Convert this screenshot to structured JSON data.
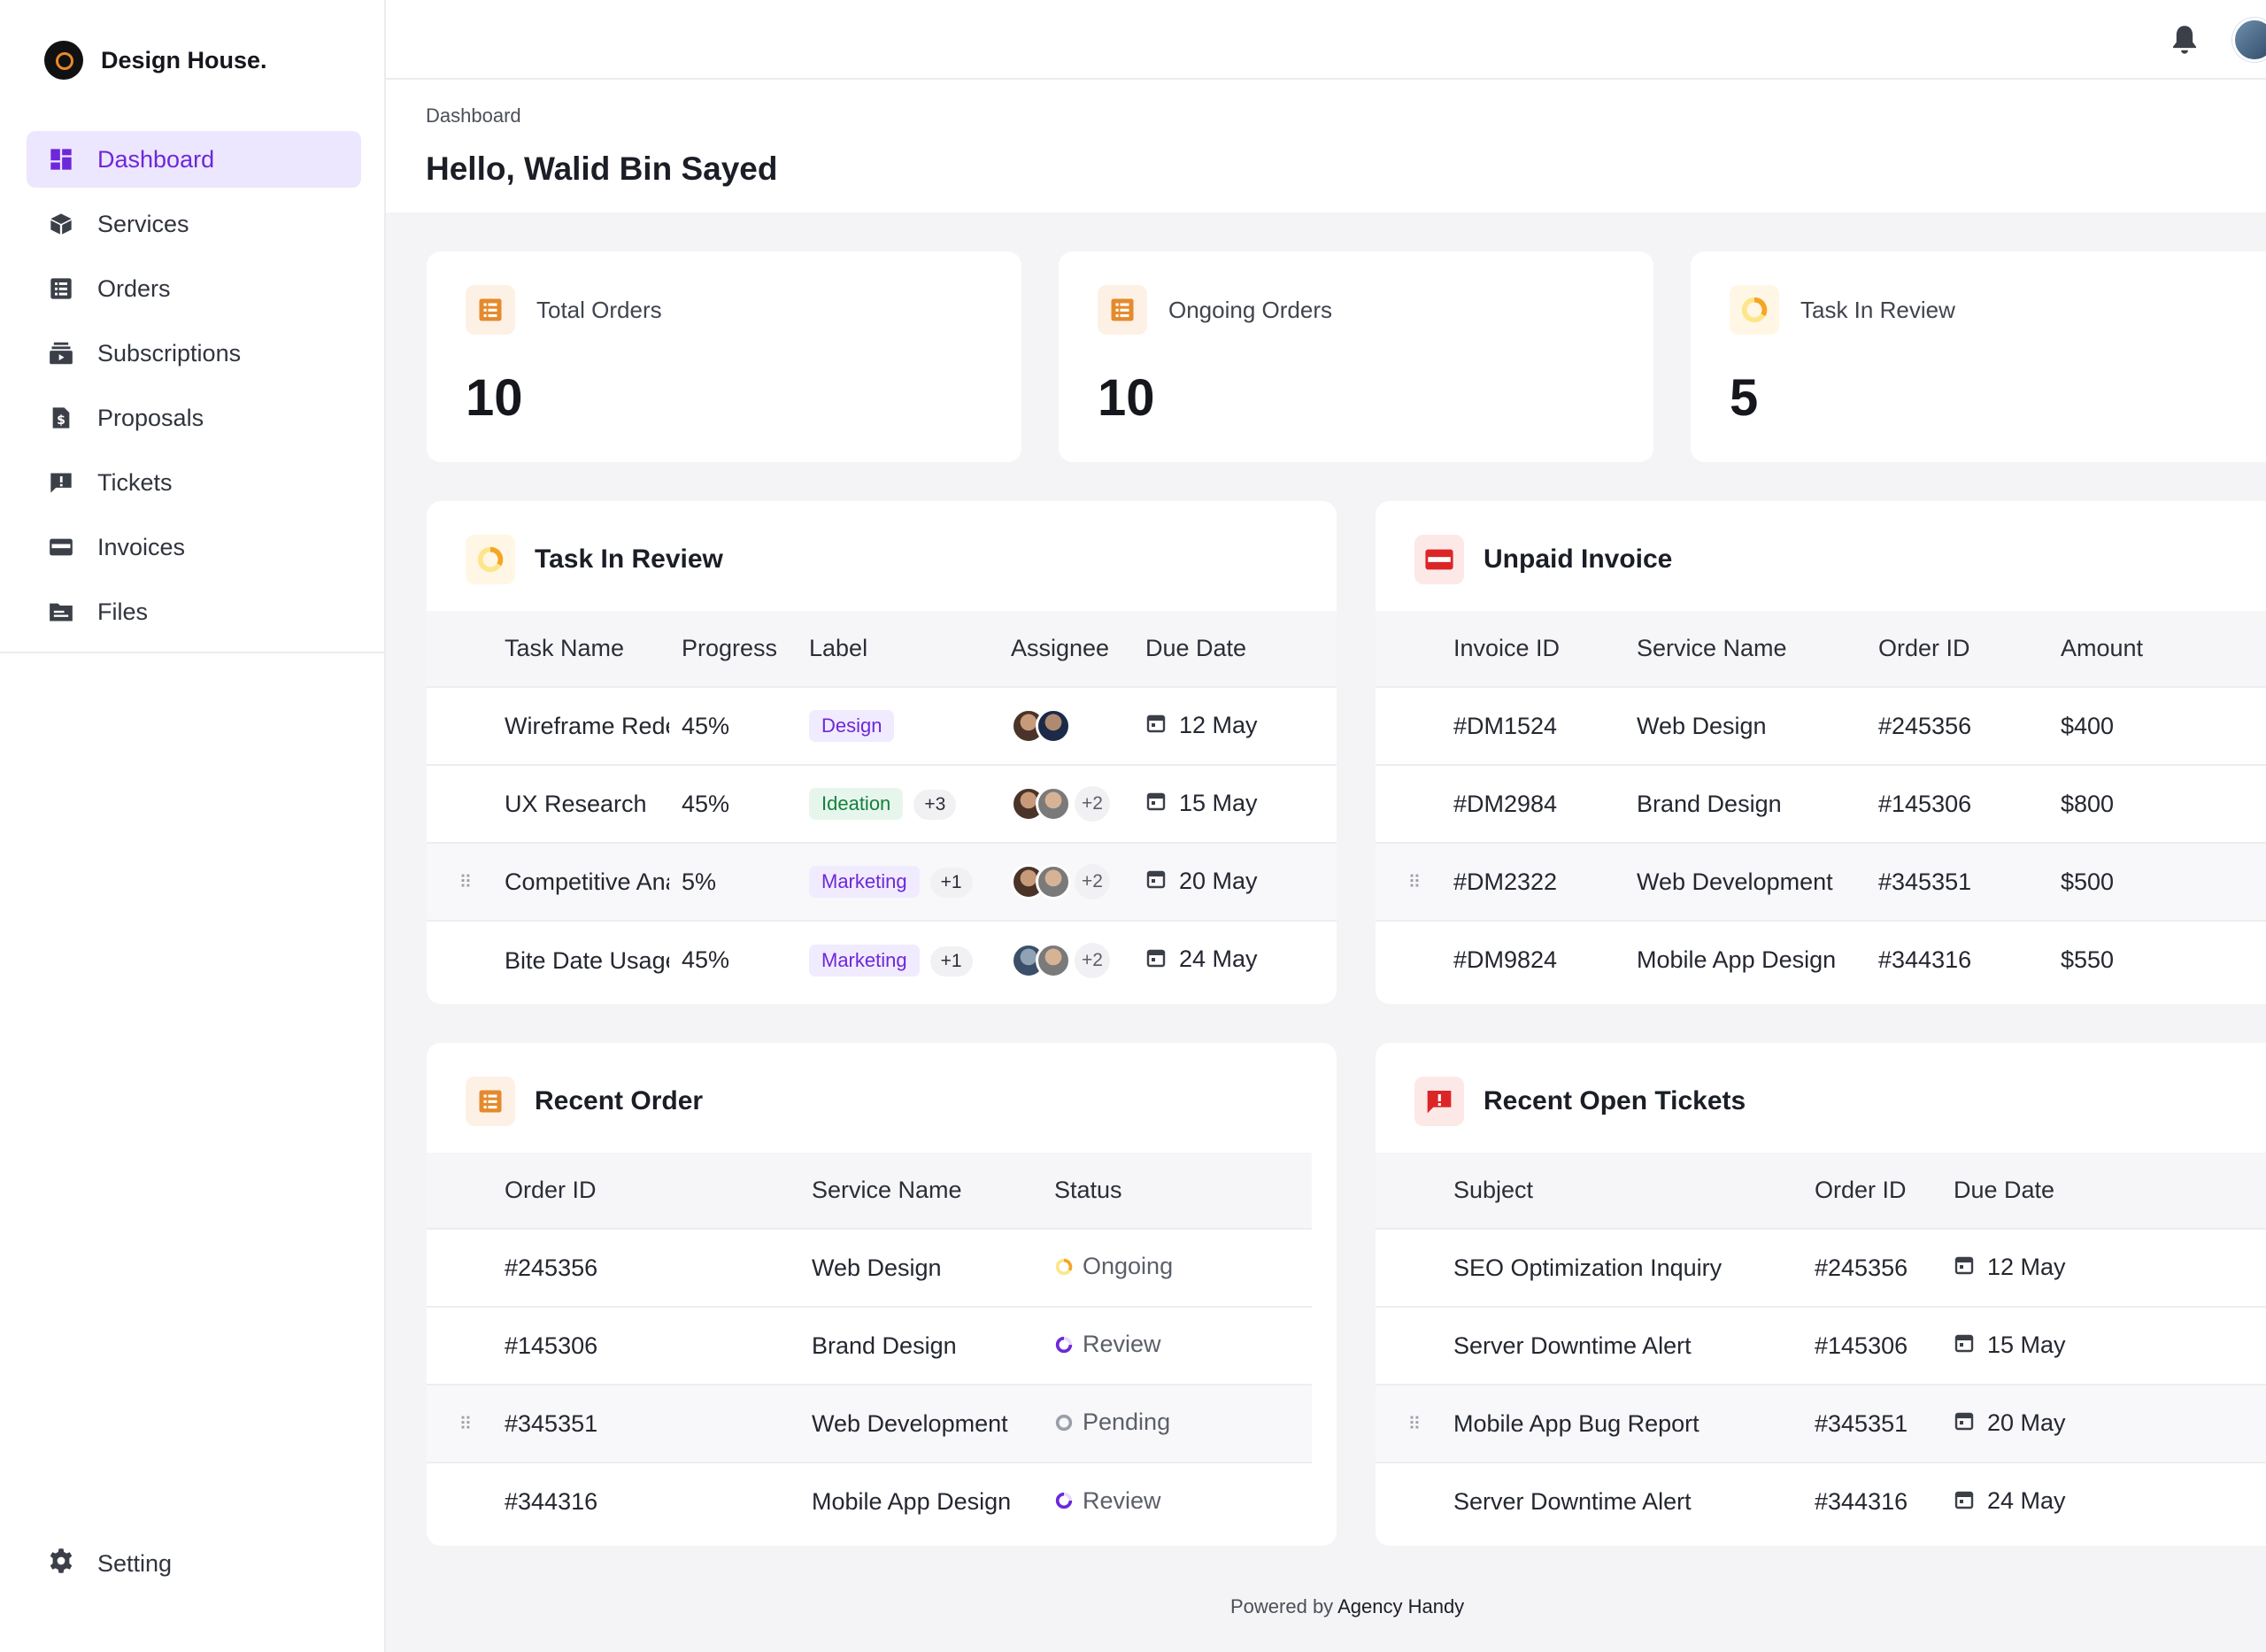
{
  "brand": {
    "name": "Design House."
  },
  "sidebar": {
    "items": [
      {
        "label": "Dashboard",
        "icon": "dashboard-icon",
        "active": true
      },
      {
        "label": "Services",
        "icon": "box-icon"
      },
      {
        "label": "Orders",
        "icon": "list-icon"
      },
      {
        "label": "Subscriptions",
        "icon": "subscriptions-icon"
      },
      {
        "label": "Proposals",
        "icon": "document-dollar-icon"
      },
      {
        "label": "Tickets",
        "icon": "ticket-chat-icon"
      },
      {
        "label": "Invoices",
        "icon": "credit-card-icon"
      },
      {
        "label": "Files",
        "icon": "folder-icon"
      }
    ],
    "setting": "Setting"
  },
  "header": {
    "breadcrumb": "Dashboard",
    "title": "Hello, Walid Bin Sayed"
  },
  "stats": [
    {
      "label": "Total Orders",
      "value": "10"
    },
    {
      "label": "Ongoing Orders",
      "value": "10"
    },
    {
      "label": "Task In Review",
      "value": "5"
    }
  ],
  "task_review": {
    "title": "Task In Review",
    "columns": [
      "Task Name",
      "Progress",
      "Label",
      "Assignee",
      "Due Date"
    ],
    "rows": [
      {
        "task": "Wireframe Redesign",
        "progress": "45%",
        "label": "Design",
        "extra": "",
        "avatars_more": "",
        "due": "12 May"
      },
      {
        "task": "UX Research",
        "progress": "45%",
        "label": "Ideation",
        "extra": "+3",
        "avatars_more": "+2",
        "due": "15 May"
      },
      {
        "task": "Competitive Analysis",
        "progress": "5%",
        "label": "Marketing",
        "extra": "+1",
        "avatars_more": "+2",
        "due": "20 May"
      },
      {
        "task": "Bite Date Usage",
        "progress": "45%",
        "label": "Marketing",
        "extra": "+1",
        "avatars_more": "+2",
        "due": "24 May"
      }
    ]
  },
  "unpaid_invoice": {
    "title": "Unpaid Invoice",
    "columns": [
      "Invoice ID",
      "Service Name",
      "Order ID",
      "Amount"
    ],
    "rows": [
      {
        "invoice": "#DM1524",
        "service": "Web Design",
        "order": "#245356",
        "amount": "$400"
      },
      {
        "invoice": "#DM2984",
        "service": "Brand Design",
        "order": "#145306",
        "amount": "$800"
      },
      {
        "invoice": "#DM2322",
        "service": "Web Development",
        "order": "#345351",
        "amount": "$500"
      },
      {
        "invoice": "#DM9824",
        "service": "Mobile App Design",
        "order": "#344316",
        "amount": "$550"
      }
    ]
  },
  "recent_order": {
    "title": "Recent Order",
    "columns": [
      "Order ID",
      "Service Name",
      "Status"
    ],
    "rows": [
      {
        "order": "#245356",
        "service": "Web Design",
        "status": "Ongoing"
      },
      {
        "order": "#145306",
        "service": "Brand Design",
        "status": "Review"
      },
      {
        "order": "#345351",
        "service": "Web Development",
        "status": "Pending"
      },
      {
        "order": "#344316",
        "service": "Mobile App Design",
        "status": "Review"
      }
    ]
  },
  "open_tickets": {
    "title": "Recent Open Tickets",
    "columns": [
      "Subject",
      "Order ID",
      "Due Date"
    ],
    "rows": [
      {
        "subject": "SEO Optimization Inquiry",
        "order": "#245356",
        "due": "12 May"
      },
      {
        "subject": "Server Downtime Alert",
        "order": "#145306",
        "due": "15 May"
      },
      {
        "subject": "Mobile App Bug Report",
        "order": "#345351",
        "due": "20 May"
      },
      {
        "subject": "Server Downtime Alert",
        "order": "#344316",
        "due": "24 May"
      }
    ]
  },
  "footer": {
    "prefix": "Powered by",
    "brand": "Agency Handy"
  },
  "colors": {
    "accent": "#6d28d9",
    "accent_bg": "#ede6ff",
    "orange": "#e58a2c",
    "red": "#dc2626"
  }
}
